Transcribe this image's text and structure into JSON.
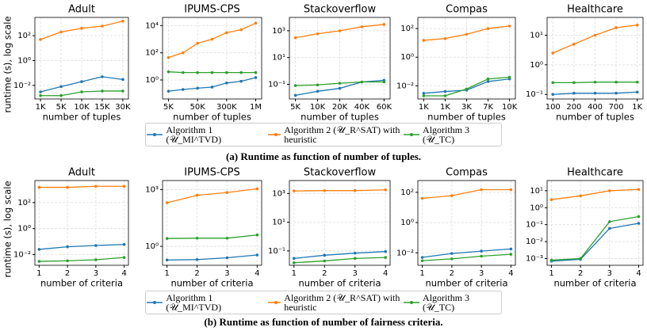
{
  "chart_data": [
    {
      "type": "line",
      "title": "Adult",
      "xlabel": "number of tuples",
      "ylabel": "runtime (s), log scale",
      "yscale": "log",
      "grid": true,
      "categories": [
        "1K",
        "5K",
        "10K",
        "15K",
        "30K"
      ],
      "ylim": [
        0.0008,
        3000
      ],
      "yticks": [
        {
          "value": 0.01,
          "label": "10⁻²"
        },
        {
          "value": 1,
          "label": "10⁰"
        },
        {
          "value": 100,
          "label": "10²"
        }
      ],
      "series": [
        {
          "color": "#1f77b4",
          "values": [
            0.003,
            0.008,
            0.02,
            0.05,
            0.03
          ]
        },
        {
          "color": "#ff7f0e",
          "values": [
            50,
            200,
            400,
            600,
            1500
          ]
        },
        {
          "color": "#2ca02c",
          "values": [
            0.0015,
            0.0015,
            0.003,
            0.0035,
            0.0035
          ]
        }
      ]
    },
    {
      "type": "line",
      "title": "IPUMS-CPS",
      "xlabel": "number of tuples",
      "yscale": "log",
      "grid": true,
      "categories": [
        "5K",
        null,
        "50K",
        null,
        "300K",
        null,
        "1M"
      ],
      "ylim": [
        0.04,
        40000
      ],
      "yticks": [
        {
          "value": 1,
          "label": "10⁰"
        },
        {
          "value": 100,
          "label": "10²"
        },
        {
          "value": 10000,
          "label": "10⁴"
        }
      ],
      "series": [
        {
          "color": "#1f77b4",
          "values": [
            0.15,
            0.2,
            0.25,
            0.3,
            0.6,
            0.8,
            1.5
          ]
        },
        {
          "color": "#ff7f0e",
          "values": [
            45,
            100,
            500,
            1000,
            3000,
            5000,
            15000
          ]
        },
        {
          "color": "#2ca02c",
          "values": [
            4,
            3.5,
            3.5,
            3.5,
            3.5,
            3.5,
            3.5
          ]
        }
      ]
    },
    {
      "type": "line",
      "title": "Stackoverflow",
      "xlabel": "number of tuples",
      "yscale": "log",
      "grid": true,
      "categories": [
        "5K",
        "10K",
        "20K",
        "40K",
        "60K"
      ],
      "ylim": [
        0.008,
        10000
      ],
      "yticks": [
        {
          "value": 0.1,
          "label": "10⁻¹"
        },
        {
          "value": 10,
          "label": "10¹"
        },
        {
          "value": 1000,
          "label": "10³"
        }
      ],
      "series": [
        {
          "color": "#1f77b4",
          "values": [
            0.015,
            0.03,
            0.05,
            0.15,
            0.2
          ]
        },
        {
          "color": "#ff7f0e",
          "values": [
            300,
            600,
            1000,
            2000,
            3000
          ]
        },
        {
          "color": "#2ca02c",
          "values": [
            0.08,
            0.09,
            0.12,
            0.15,
            0.15
          ]
        }
      ]
    },
    {
      "type": "line",
      "title": "Compas",
      "xlabel": "number of tuples",
      "yscale": "log",
      "grid": true,
      "categories": [
        "1K",
        "1K",
        "3K",
        "7K",
        "10K"
      ],
      "ylim": [
        0.0012,
        600
      ],
      "yticks": [
        {
          "value": 0.01,
          "label": "10⁻²"
        },
        {
          "value": 1,
          "label": "10⁰"
        },
        {
          "value": 100,
          "label": "10²"
        }
      ],
      "series": [
        {
          "color": "#1f77b4",
          "values": [
            0.003,
            0.004,
            0.005,
            0.02,
            0.03
          ]
        },
        {
          "color": "#ff7f0e",
          "values": [
            15,
            20,
            40,
            100,
            150
          ]
        },
        {
          "color": "#2ca02c",
          "values": [
            0.002,
            0.002,
            0.006,
            0.03,
            0.04
          ]
        }
      ]
    },
    {
      "type": "line",
      "title": "Healthcare",
      "xlabel": "number of tuples",
      "yscale": "log",
      "grid": true,
      "categories": [
        "100",
        "200",
        "400",
        "700",
        "1K"
      ],
      "ylim": [
        0.07,
        40
      ],
      "yticks": [
        {
          "value": 0.1,
          "label": "10⁻¹"
        },
        {
          "value": 1,
          "label": "10⁰"
        },
        {
          "value": 10,
          "label": "10¹"
        }
      ],
      "series": [
        {
          "color": "#1f77b4",
          "values": [
            0.1,
            0.11,
            0.11,
            0.11,
            0.12
          ]
        },
        {
          "color": "#ff7f0e",
          "values": [
            2.5,
            5,
            10,
            18,
            22
          ]
        },
        {
          "color": "#2ca02c",
          "values": [
            0.25,
            0.25,
            0.26,
            0.26,
            0.26
          ]
        }
      ]
    },
    {
      "type": "line",
      "title": "Adult",
      "xlabel": "number of criteria",
      "ylabel": "runtime (s), log scale",
      "yscale": "log",
      "grid": true,
      "x": [
        1,
        2,
        3,
        4
      ],
      "xlim": [
        0.85,
        4.15
      ],
      "xticks": [
        1,
        2,
        3,
        4
      ],
      "ylim": [
        0.0015,
        5000
      ],
      "yticks": [
        {
          "value": 0.01,
          "label": "10⁻²"
        },
        {
          "value": 1,
          "label": "10⁰"
        },
        {
          "value": 100,
          "label": "10²"
        }
      ],
      "series": [
        {
          "color": "#1f77b4",
          "values": [
            0.025,
            0.04,
            0.05,
            0.06
          ]
        },
        {
          "color": "#ff7f0e",
          "values": [
            1500,
            1500,
            1800,
            1800
          ]
        },
        {
          "color": "#2ca02c",
          "values": [
            0.003,
            0.0033,
            0.004,
            0.006
          ]
        }
      ]
    },
    {
      "type": "line",
      "title": "IPUMS-CPS",
      "xlabel": "number of criteria",
      "yscale": "log",
      "grid": true,
      "x": [
        1,
        2,
        3,
        4
      ],
      "xlim": [
        0.85,
        4.15
      ],
      "xticks": [
        1,
        2,
        3,
        4
      ],
      "ylim": [
        0.1,
        3000
      ],
      "yticks": [
        {
          "value": 1,
          "label": "10⁰"
        },
        {
          "value": 1000,
          "label": "10³"
        }
      ],
      "series": [
        {
          "color": "#1f77b4",
          "values": [
            0.19,
            0.2,
            0.25,
            0.35
          ]
        },
        {
          "color": "#ff7f0e",
          "values": [
            200,
            500,
            700,
            1100
          ]
        },
        {
          "color": "#2ca02c",
          "values": [
            2.6,
            2.7,
            2.7,
            4
          ]
        }
      ]
    },
    {
      "type": "line",
      "title": "Stackoverflow",
      "xlabel": "number of criteria",
      "yscale": "log",
      "grid": true,
      "x": [
        1,
        2,
        3,
        4
      ],
      "xlim": [
        0.85,
        4.15
      ],
      "xticks": [
        1,
        2,
        3,
        4
      ],
      "ylim": [
        0.01,
        8000
      ],
      "yticks": [
        {
          "value": 0.1,
          "label": "10⁻¹"
        },
        {
          "value": 10,
          "label": "10¹"
        },
        {
          "value": 1000,
          "label": "10³"
        }
      ],
      "series": [
        {
          "color": "#1f77b4",
          "values": [
            0.03,
            0.05,
            0.07,
            0.09
          ]
        },
        {
          "color": "#ff7f0e",
          "values": [
            1500,
            1600,
            1600,
            1800
          ]
        },
        {
          "color": "#2ca02c",
          "values": [
            0.015,
            0.02,
            0.03,
            0.035
          ]
        }
      ]
    },
    {
      "type": "line",
      "title": "Compas",
      "xlabel": "number of criteria",
      "yscale": "log",
      "grid": true,
      "x": [
        1,
        2,
        3,
        4
      ],
      "xlim": [
        0.85,
        4.15
      ],
      "xticks": [
        1,
        2,
        3,
        4
      ],
      "ylim": [
        0.0015,
        600
      ],
      "yticks": [
        {
          "value": 0.01,
          "label": "10⁻²"
        },
        {
          "value": 1,
          "label": "10⁰"
        },
        {
          "value": 100,
          "label": "10²"
        }
      ],
      "series": [
        {
          "color": "#1f77b4",
          "values": [
            0.005,
            0.009,
            0.013,
            0.018
          ]
        },
        {
          "color": "#ff7f0e",
          "values": [
            40,
            60,
            150,
            150
          ]
        },
        {
          "color": "#2ca02c",
          "values": [
            0.003,
            0.004,
            0.006,
            0.008
          ]
        }
      ]
    },
    {
      "type": "line",
      "title": "Healthcare",
      "xlabel": "number of criteria",
      "yscale": "log",
      "grid": true,
      "x": [
        1,
        2,
        3,
        4
      ],
      "xlim": [
        0.85,
        4.15
      ],
      "xticks": [
        1,
        2,
        3,
        4
      ],
      "ylim": [
        0.0004,
        40
      ],
      "yticks": [
        {
          "value": 0.001,
          "label": "10⁻³"
        },
        {
          "value": 0.01,
          "label": "10⁻²"
        },
        {
          "value": 0.1,
          "label": "10⁻¹"
        },
        {
          "value": 1,
          "label": "10⁰"
        },
        {
          "value": 10,
          "label": "10¹"
        }
      ],
      "series": [
        {
          "color": "#1f77b4",
          "values": [
            0.0007,
            0.0009,
            0.06,
            0.12
          ]
        },
        {
          "color": "#ff7f0e",
          "values": [
            3,
            5,
            10,
            12
          ]
        },
        {
          "color": "#2ca02c",
          "values": [
            0.0008,
            0.001,
            0.15,
            0.3
          ]
        }
      ]
    }
  ],
  "legends": [
    [
      "Algorithm 1 (𝒰_MI^TVD)",
      "Algorithm 2 (𝒰_R^SAT) with heuristic",
      "Algorithm 3 (𝒰_TC)"
    ],
    [
      "Algorithm 1 (𝒰_MI^TVD)",
      "Algorithm 2 (𝒰_R^SAT) with heuristic",
      "Algorithm 3 (𝒰_TC)"
    ]
  ],
  "captions": [
    "(a) Runtime as function of number of tuples.",
    "(b) Runtime as function of number of fairness criteria."
  ]
}
